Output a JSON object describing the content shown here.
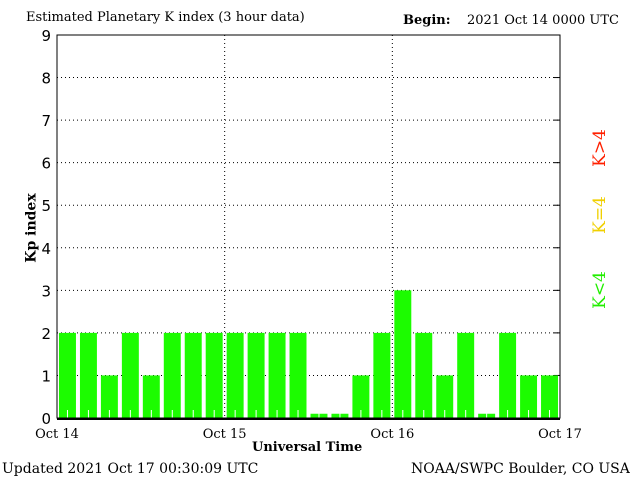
{
  "chart_data": {
    "type": "bar",
    "title": "Estimated Planetary K index (3 hour data)",
    "begin_label": "Begin:",
    "begin_value": "2021 Oct 14 0000 UTC",
    "xlabel": "Universal Time",
    "ylabel": "Kp index",
    "ylim": [
      0,
      9
    ],
    "yticks": [
      "0",
      "1",
      "2",
      "3",
      "4",
      "5",
      "6",
      "7",
      "8",
      "9"
    ],
    "xticks": [
      "Oct 14",
      "Oct 15",
      "Oct 16",
      "Oct 17"
    ],
    "grid": true,
    "values": [
      2,
      2,
      1,
      2,
      1,
      2,
      2,
      2,
      2,
      2,
      2,
      2,
      0.1,
      0.1,
      1,
      2,
      3,
      2,
      1,
      2,
      0.1,
      2,
      1,
      1
    ],
    "bar_color": "#1cfc00",
    "legend": [
      {
        "label": "K<4",
        "color": "#22ee00"
      },
      {
        "label": "K=4",
        "color": "#f0d000"
      },
      {
        "label": "K>4",
        "color": "#ff2000"
      }
    ]
  },
  "footer": {
    "updated": "Updated 2021 Oct 17 00:30:09 UTC",
    "source": "NOAA/SWPC Boulder, CO USA"
  }
}
